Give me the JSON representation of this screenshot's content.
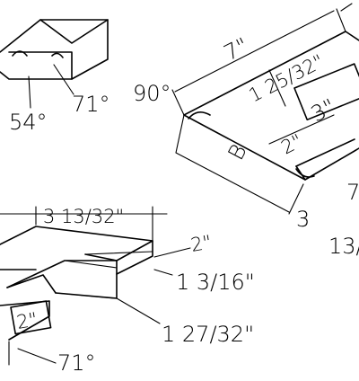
{
  "drawing": {
    "top_left": {
      "angle_a": "54°",
      "angle_b": "71°"
    },
    "top_right": {
      "length": "7\"",
      "corner_angle": "90°",
      "width": "1 25/32\"",
      "end_dim": "3\"",
      "side_dim": "2\"",
      "label": "B",
      "bottom_dim": "3",
      "fraction_partial": "13/",
      "edge_partial": "7"
    },
    "bottom_left": {
      "top_dim": "3 13/32\"",
      "face_dim": "2\"",
      "thickness": "1 3/16\"",
      "depth": "1 27/32\"",
      "small_dim": "2\"",
      "angle": "71°"
    }
  }
}
